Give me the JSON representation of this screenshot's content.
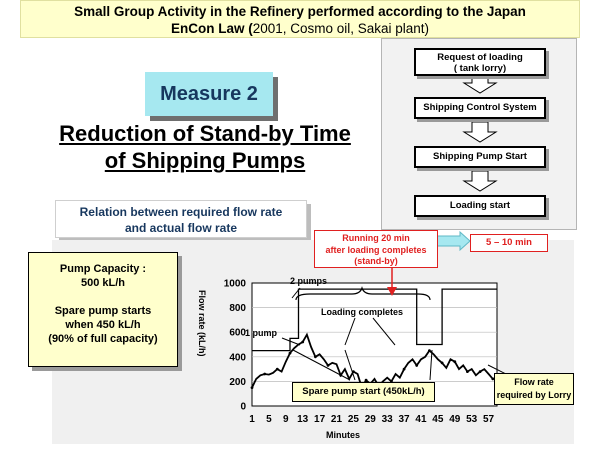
{
  "title": {
    "line1": "Small Group Activity in the Refinery performed according to the Japan",
    "line2_bold": "EnCon Law (",
    "line2_normal": "2001, Cosmo oil, Sakai plant)"
  },
  "measure_label": "Measure 2",
  "heading": {
    "line1": "Reduction of Stand-by Time",
    "line2": "of Shipping Pumps"
  },
  "flow_steps": [
    {
      "line1": "Request of loading",
      "line2": "( tank lorry)"
    },
    {
      "line1": "Shipping Control System",
      "line2": ""
    },
    {
      "line1": "Shipping Pump Start",
      "line2": ""
    },
    {
      "line1": "Loading start",
      "line2": ""
    }
  ],
  "relation_box": {
    "line1": "Relation between required flow rate",
    "line2": "and actual flow rate"
  },
  "pump_capacity": {
    "line1": "Pump Capacity :",
    "line2": "500 kL/h",
    "line3": "Spare pump starts",
    "line4": "when 450 kL/h",
    "line5": "(90% of full capacity)"
  },
  "running_callout": {
    "line1": "Running 20 min",
    "line2": "after loading completes",
    "line3": "(stand-by)"
  },
  "reduced_callout": "5 – 10 min",
  "spare_start_callout": "Spare pump start (450kL/h)",
  "flow_rate_callout": {
    "line1": "Flow rate",
    "line2": "required by Lorry"
  },
  "annotations": {
    "two_pumps": "2 pumps",
    "one_pump": "1 pump",
    "loading_completes": "Loading completes"
  },
  "colors": {
    "red": "#e02020",
    "cyan_box": "#a6e8f0",
    "yellow_box": "#ffffcc",
    "navy_text": "#17375e"
  },
  "chart_data": {
    "type": "line",
    "xlabel": "Minutes",
    "ylabel": "Flow rate (kL/h)",
    "x_ticks": [
      "1",
      "5",
      "9",
      "13",
      "17",
      "21",
      "25",
      "29",
      "33",
      "37",
      "41",
      "45",
      "49",
      "53",
      "57"
    ],
    "y_ticks": [
      "0",
      "200",
      "400",
      "600",
      "800",
      "1000"
    ],
    "ylim": [
      0,
      1000
    ],
    "xlim": [
      1,
      59
    ],
    "grid": true,
    "series": [
      {
        "name": "",
        "style": "step",
        "points": [
          [
            1,
            450
          ],
          [
            10,
            450
          ],
          [
            10,
            550
          ],
          [
            12,
            550
          ],
          [
            12,
            950
          ],
          [
            40,
            950
          ],
          [
            40,
            500
          ],
          [
            46,
            500
          ],
          [
            46,
            950
          ],
          [
            59,
            950
          ]
        ]
      },
      {
        "name": "",
        "style": "actual",
        "points": [
          [
            1,
            150
          ],
          [
            2,
            220
          ],
          [
            3,
            250
          ],
          [
            4,
            260
          ],
          [
            5,
            255
          ],
          [
            6,
            270
          ],
          [
            7,
            300
          ],
          [
            8,
            280
          ],
          [
            9,
            360
          ],
          [
            10,
            430
          ],
          [
            11,
            470
          ],
          [
            12,
            500
          ],
          [
            13,
            520
          ],
          [
            14,
            580
          ],
          [
            15,
            480
          ],
          [
            16,
            400
          ],
          [
            17,
            420
          ],
          [
            18,
            380
          ],
          [
            19,
            330
          ],
          [
            20,
            350
          ],
          [
            21,
            340
          ],
          [
            22,
            250
          ],
          [
            23,
            300
          ],
          [
            24,
            220
          ],
          [
            25,
            280
          ],
          [
            26,
            260
          ],
          [
            27,
            150
          ],
          [
            28,
            210
          ],
          [
            29,
            180
          ],
          [
            30,
            220
          ],
          [
            31,
            160
          ],
          [
            32,
            200
          ],
          [
            33,
            230
          ],
          [
            34,
            200
          ],
          [
            35,
            260
          ],
          [
            36,
            230
          ],
          [
            37,
            300
          ],
          [
            38,
            350
          ],
          [
            39,
            380
          ],
          [
            40,
            330
          ],
          [
            41,
            380
          ],
          [
            42,
            400
          ],
          [
            43,
            450
          ],
          [
            44,
            420
          ],
          [
            45,
            380
          ],
          [
            46,
            350
          ],
          [
            47,
            310
          ],
          [
            48,
            380
          ],
          [
            49,
            360
          ],
          [
            50,
            300
          ],
          [
            51,
            330
          ],
          [
            52,
            280
          ],
          [
            53,
            300
          ],
          [
            54,
            250
          ],
          [
            55,
            280
          ],
          [
            56,
            300
          ],
          [
            57,
            260
          ],
          [
            58,
            220
          ],
          [
            59,
            230
          ]
        ]
      }
    ]
  }
}
